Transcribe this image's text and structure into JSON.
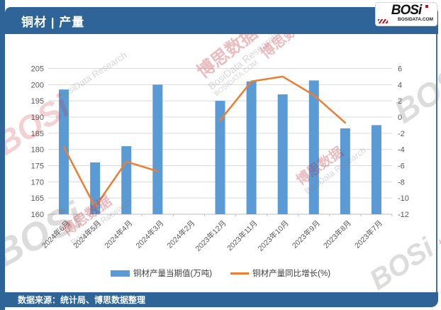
{
  "header": {
    "title": "铜材 | 产量"
  },
  "logo": {
    "text": "BOSi",
    "site": "BOSIDATA.COM"
  },
  "footer": {
    "source": "数据来源：统计局、博思数据整理"
  },
  "watermark": {
    "cn": "博思数据",
    "en": "BosiData Research",
    "logo": "BOSi",
    "site": "BOSIDATA.COM"
  },
  "colors": {
    "header_bar": "#2E6497",
    "bar": "#5B9BD5",
    "line": "#ED7D31",
    "grid": "#D9D9D9",
    "axis_line": "#BFBFBF",
    "axis_text": "#595959"
  },
  "chart_data": {
    "type": "combo bar+line",
    "categories": [
      "2024年6月",
      "2024年5月",
      "2024年4月",
      "2024年3月",
      "2024年2月",
      "2023年12月",
      "2023年11月",
      "2023年10月",
      "2023年9月",
      "2023年8月",
      "2023年7月"
    ],
    "series": [
      {
        "name": "铜材产量当期值(万吨)",
        "type": "bar",
        "axis": "left",
        "color": "#5B9BD5",
        "values": [
          198.5,
          176,
          181,
          200,
          null,
          195,
          201,
          197,
          201.3,
          186.5,
          187.5
        ]
      },
      {
        "name": "铜材产量同比增长(%)",
        "type": "line",
        "axis": "right",
        "color": "#ED7D31",
        "values": [
          -3.7,
          -11.1,
          -5.5,
          -6.7,
          null,
          -0.4,
          4.4,
          5.0,
          2.7,
          -0.7,
          null
        ]
      }
    ],
    "left_axis": {
      "min": 160,
      "max": 205,
      "step": 5,
      "ticks": [
        "205",
        "200",
        "195",
        "190",
        "185",
        "180",
        "175",
        "170",
        "165",
        "160"
      ]
    },
    "right_axis": {
      "min": -12,
      "max": 6,
      "step": 2,
      "ticks": [
        "6",
        "4",
        "2",
        "0",
        "-2",
        "-4",
        "-6",
        "-8",
        "-10",
        "-12"
      ]
    },
    "grid": true,
    "legend_position": "bottom"
  }
}
